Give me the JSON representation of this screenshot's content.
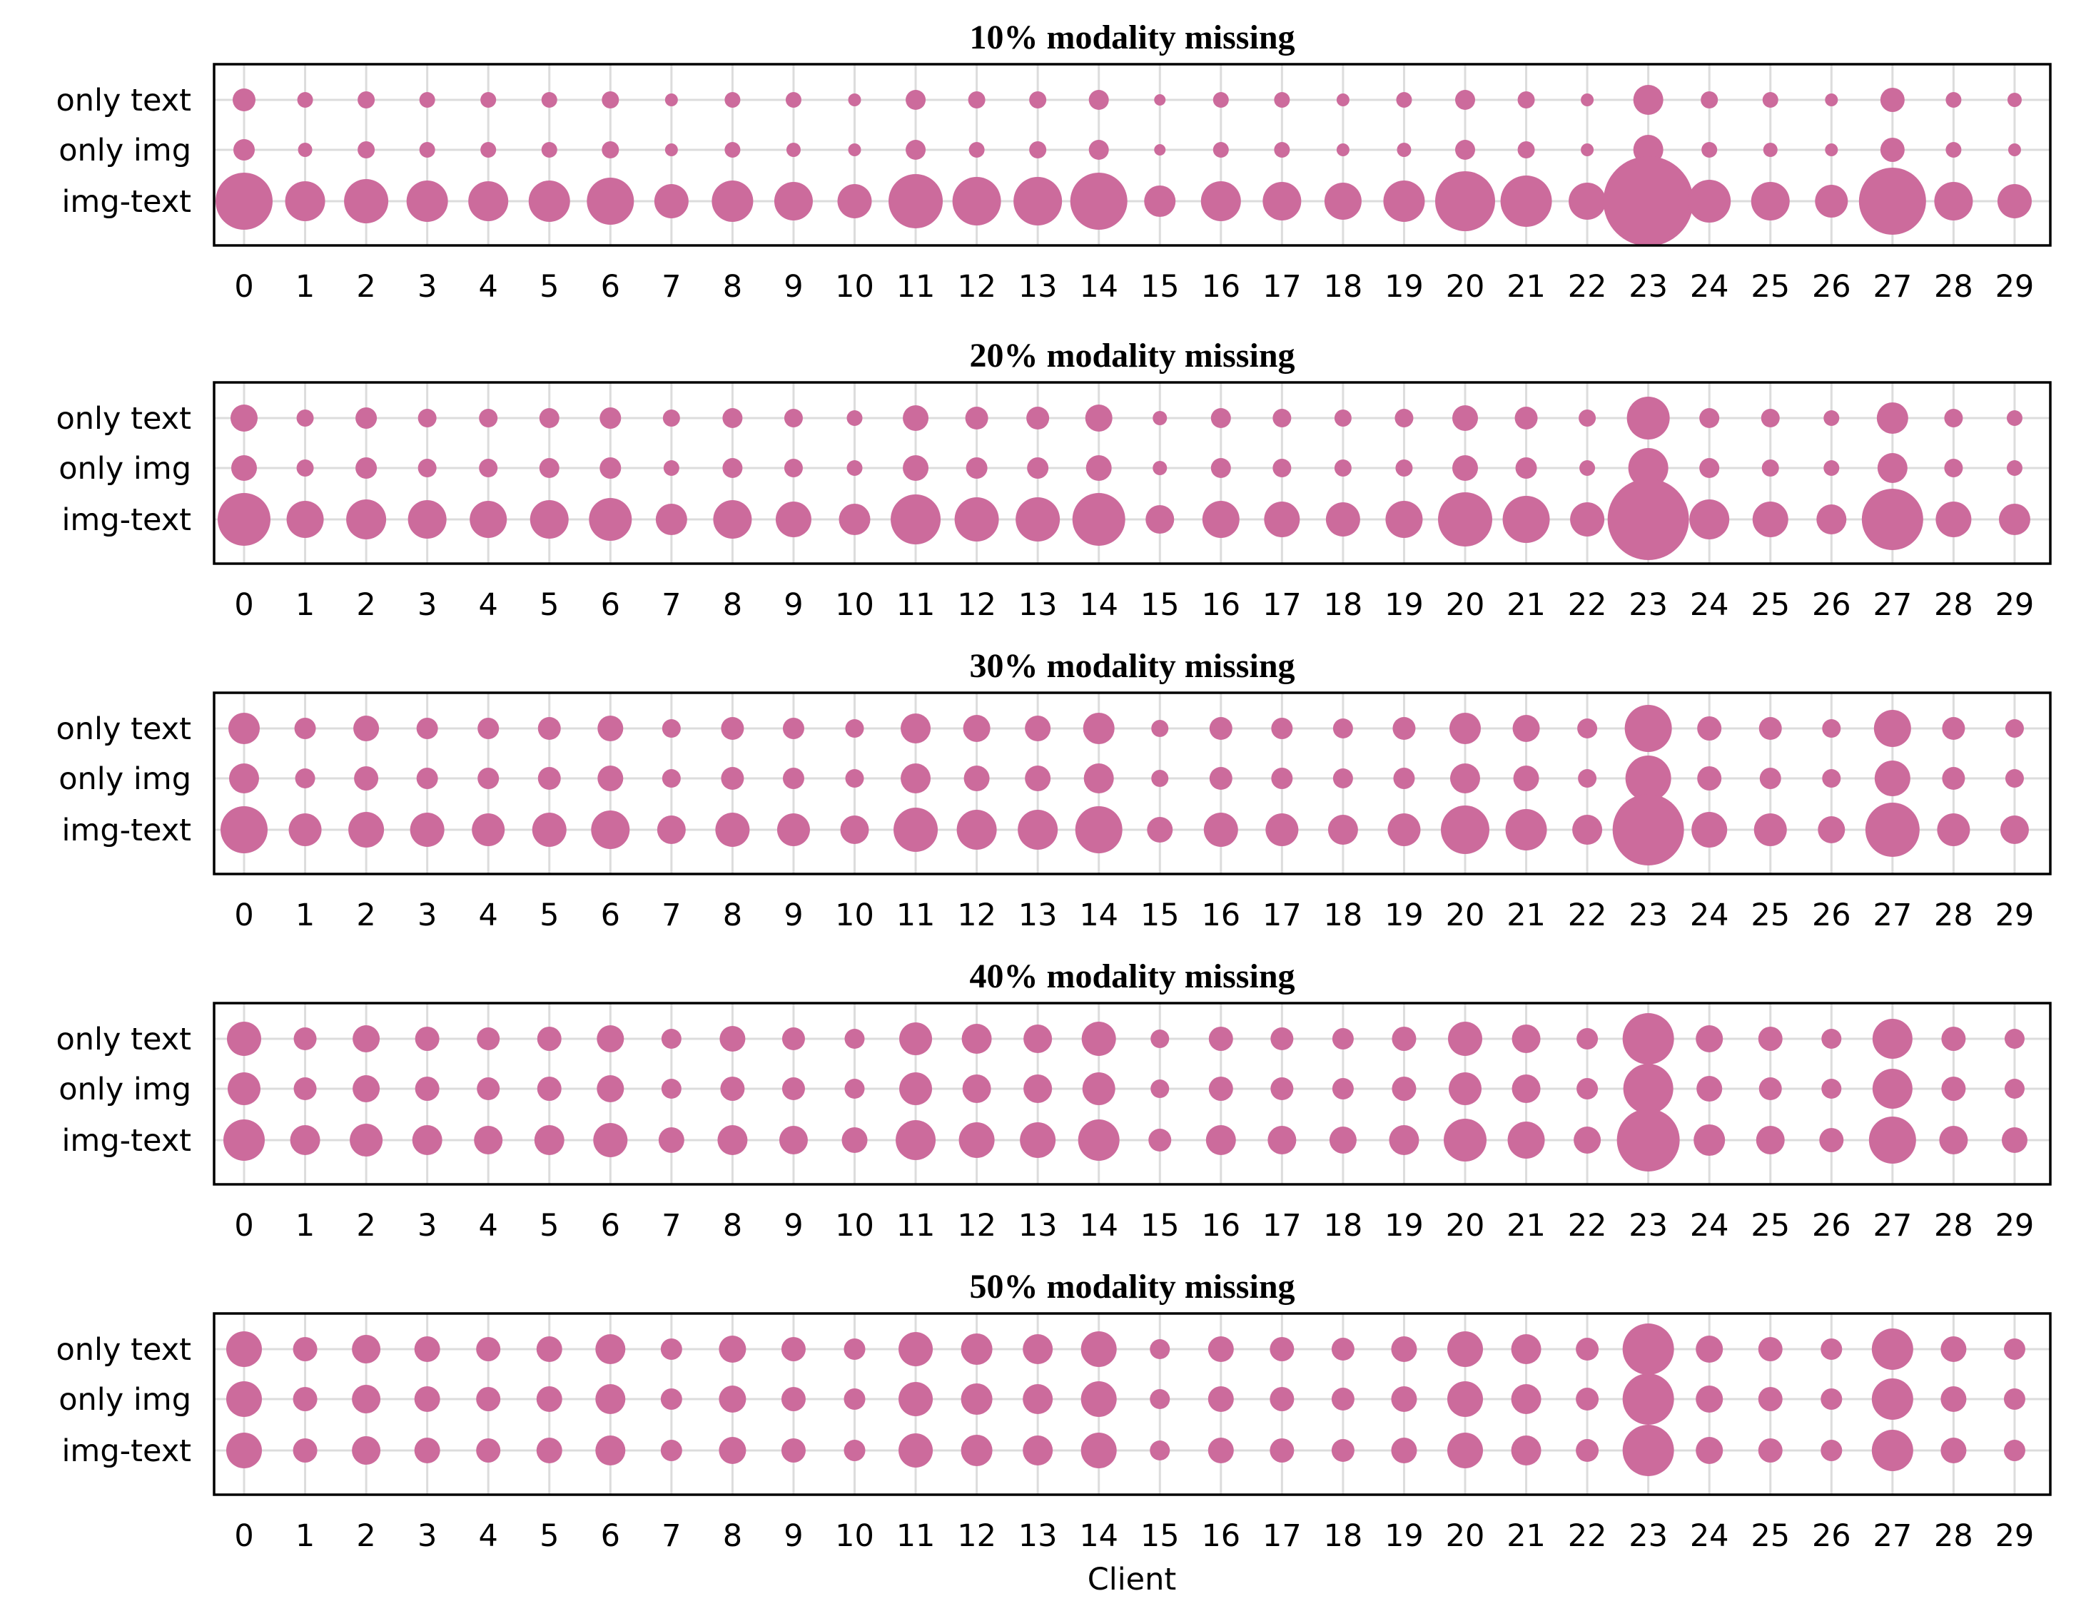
{
  "chart_data": {
    "type": "scatter",
    "encoding": "bubble",
    "marker_color": "#cc6b9c",
    "grid": true,
    "xlabel": "Client",
    "clients": [
      0,
      1,
      2,
      3,
      4,
      5,
      6,
      7,
      8,
      9,
      10,
      11,
      12,
      13,
      14,
      15,
      16,
      17,
      18,
      19,
      20,
      21,
      22,
      23,
      24,
      25,
      26,
      27,
      28,
      29
    ],
    "rows": [
      "only text",
      "only img",
      "img-text"
    ],
    "panels": [
      {
        "title": "10% modality missing",
        "sizes": {
          "only text": [
            16,
            11,
            12,
            11,
            11,
            11,
            12,
            9,
            11,
            11,
            9,
            14,
            12,
            12,
            14,
            8,
            11,
            11,
            9,
            11,
            14,
            12,
            9,
            21,
            12,
            11,
            9,
            17,
            11,
            10
          ],
          "only img": [
            15,
            10,
            12,
            11,
            11,
            11,
            12,
            9,
            11,
            10,
            9,
            14,
            11,
            12,
            14,
            8,
            11,
            11,
            9,
            10,
            14,
            12,
            9,
            21,
            11,
            10,
            9,
            17,
            11,
            9
          ],
          "img-text": [
            40,
            28,
            31,
            29,
            28,
            29,
            33,
            24,
            29,
            27,
            24,
            38,
            34,
            34,
            40,
            22,
            28,
            27,
            26,
            29,
            42,
            36,
            26,
            63,
            30,
            27,
            23,
            47,
            27,
            24
          ]
        }
      },
      {
        "title": "20% modality missing",
        "sizes": {
          "only text": [
            19,
            12,
            15,
            13,
            13,
            14,
            15,
            12,
            14,
            13,
            11,
            18,
            16,
            16,
            19,
            10,
            14,
            13,
            12,
            13,
            18,
            16,
            12,
            30,
            14,
            13,
            11,
            22,
            13,
            11
          ],
          "only img": [
            18,
            12,
            15,
            13,
            13,
            14,
            15,
            11,
            14,
            13,
            11,
            18,
            15,
            15,
            18,
            10,
            14,
            13,
            12,
            12,
            18,
            15,
            11,
            28,
            14,
            12,
            11,
            21,
            13,
            11
          ],
          "img-text": [
            37,
            26,
            28,
            27,
            26,
            27,
            30,
            22,
            27,
            25,
            22,
            35,
            31,
            31,
            37,
            20,
            26,
            25,
            24,
            26,
            38,
            33,
            24,
            57,
            28,
            25,
            21,
            43,
            25,
            22
          ]
        }
      },
      {
        "title": "30% modality missing",
        "sizes": {
          "only text": [
            22,
            15,
            18,
            15,
            15,
            16,
            18,
            13,
            16,
            15,
            13,
            21,
            19,
            18,
            22,
            12,
            16,
            15,
            14,
            16,
            22,
            19,
            14,
            33,
            17,
            16,
            13,
            26,
            16,
            13
          ],
          "only img": [
            21,
            14,
            17,
            15,
            15,
            16,
            18,
            13,
            16,
            15,
            13,
            21,
            18,
            18,
            21,
            12,
            16,
            15,
            14,
            15,
            21,
            18,
            13,
            32,
            17,
            15,
            13,
            25,
            16,
            13
          ],
          "img-text": [
            33,
            23,
            25,
            24,
            23,
            24,
            27,
            20,
            24,
            23,
            20,
            31,
            28,
            28,
            33,
            18,
            24,
            23,
            21,
            23,
            34,
            29,
            21,
            50,
            25,
            23,
            19,
            38,
            23,
            20
          ]
        }
      },
      {
        "title": "40% modality missing",
        "sizes": {
          "only text": [
            24,
            16,
            19,
            17,
            16,
            17,
            19,
            14,
            18,
            16,
            14,
            23,
            21,
            20,
            24,
            13,
            17,
            16,
            15,
            17,
            24,
            20,
            15,
            36,
            19,
            17,
            14,
            28,
            17,
            14
          ],
          "only img": [
            23,
            16,
            19,
            17,
            16,
            17,
            19,
            14,
            17,
            16,
            14,
            23,
            20,
            20,
            23,
            13,
            17,
            16,
            15,
            17,
            23,
            20,
            15,
            35,
            18,
            16,
            14,
            28,
            17,
            14
          ],
          "img-text": [
            29,
            21,
            23,
            21,
            20,
            21,
            24,
            18,
            21,
            20,
            18,
            28,
            25,
            25,
            29,
            16,
            21,
            20,
            19,
            21,
            30,
            26,
            19,
            44,
            22,
            20,
            17,
            33,
            20,
            18
          ]
        }
      },
      {
        "title": "50% modality missing",
        "sizes": {
          "only text": [
            25,
            17,
            20,
            18,
            17,
            18,
            21,
            15,
            19,
            17,
            15,
            24,
            22,
            21,
            25,
            14,
            18,
            17,
            16,
            18,
            25,
            21,
            16,
            36,
            19,
            17,
            15,
            29,
            18,
            15
          ],
          "only img": [
            25,
            17,
            20,
            18,
            17,
            18,
            21,
            15,
            19,
            17,
            15,
            24,
            22,
            21,
            25,
            14,
            18,
            17,
            16,
            18,
            25,
            21,
            16,
            36,
            19,
            17,
            15,
            29,
            18,
            15
          ],
          "img-text": [
            25,
            17,
            20,
            18,
            17,
            18,
            21,
            15,
            19,
            17,
            15,
            24,
            22,
            21,
            25,
            14,
            18,
            17,
            16,
            18,
            25,
            21,
            16,
            36,
            19,
            17,
            15,
            29,
            18,
            15
          ]
        }
      }
    ]
  }
}
